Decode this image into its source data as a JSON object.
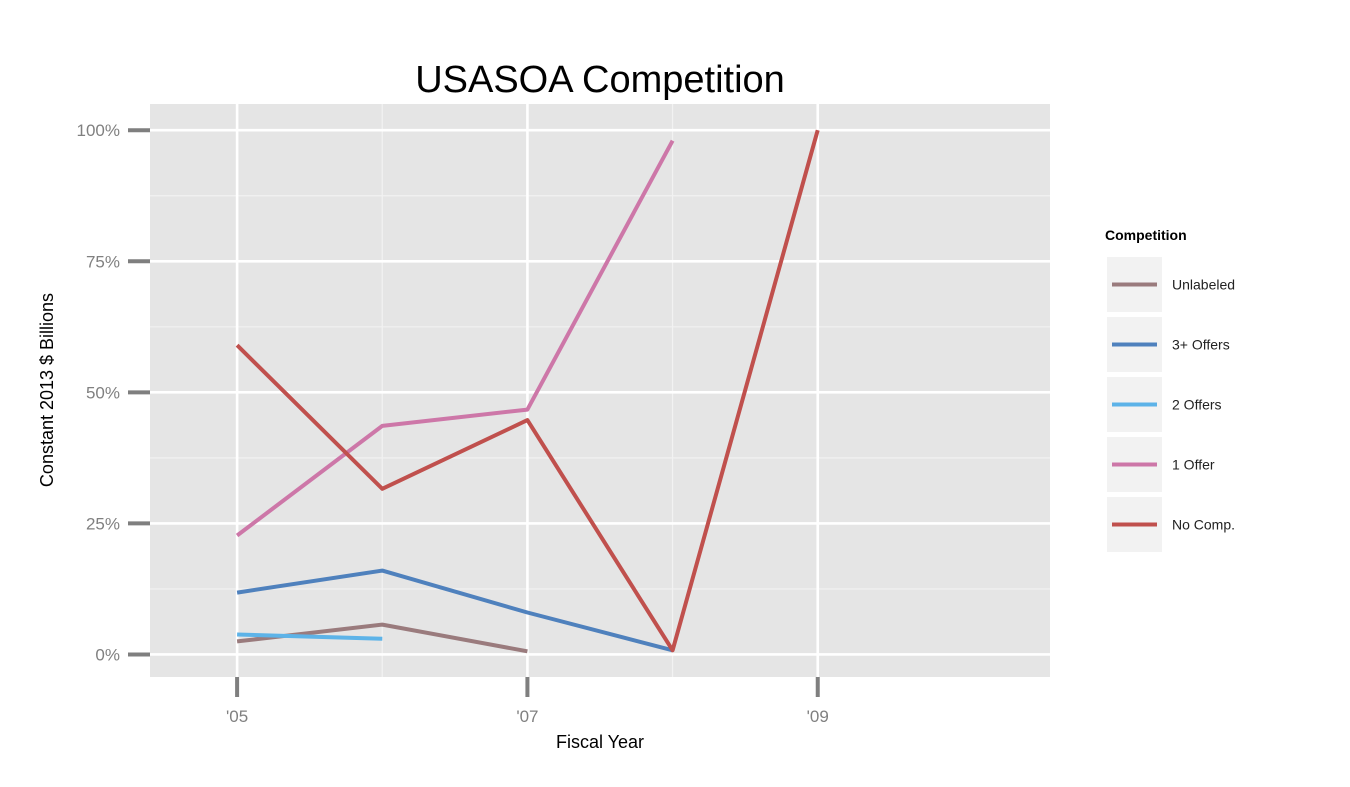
{
  "chart_data": {
    "type": "line",
    "title": "USASOA Competition",
    "xlabel": "Fiscal Year",
    "ylabel": "Constant 2013 $ Billions",
    "x": [
      2005,
      2006,
      2007,
      2008,
      2009
    ],
    "x_ticks": [
      {
        "value": 2005,
        "label": "'05"
      },
      {
        "value": 2007,
        "label": "'07"
      },
      {
        "value": 2009,
        "label": "'09"
      }
    ],
    "xlim": [
      2004.4,
      2010.6
    ],
    "y_ticks": [
      {
        "value": 0,
        "label": "0%"
      },
      {
        "value": 0.25,
        "label": "25%"
      },
      {
        "value": 0.5,
        "label": "50%"
      },
      {
        "value": 0.75,
        "label": "75%"
      },
      {
        "value": 1.0,
        "label": "100%"
      }
    ],
    "ylim": [
      -0.043,
      1.05
    ],
    "grid": true,
    "legend": {
      "title": "Competition",
      "position": "right"
    },
    "series": [
      {
        "name": "Unlabeled",
        "color": "#9A7B7D",
        "x": [
          2005,
          2006,
          2007
        ],
        "values": [
          0.025,
          0.057,
          0.006
        ]
      },
      {
        "name": "3+ Offers",
        "color": "#4F81BD",
        "x": [
          2005,
          2006,
          2007,
          2008
        ],
        "values": [
          0.118,
          0.16,
          0.08,
          0.008
        ]
      },
      {
        "name": "2 Offers",
        "color": "#5DB3E8",
        "x": [
          2005,
          2006
        ],
        "values": [
          0.038,
          0.03
        ]
      },
      {
        "name": "1 Offer",
        "color": "#CD77A8",
        "x": [
          2005,
          2006,
          2007,
          2008
        ],
        "values": [
          0.227,
          0.436,
          0.467,
          0.98
        ]
      },
      {
        "name": "No Comp.",
        "color": "#C0504D",
        "x": [
          2005,
          2006,
          2007,
          2008,
          2009
        ],
        "values": [
          0.59,
          0.316,
          0.447,
          0.008,
          1.0
        ]
      }
    ]
  }
}
